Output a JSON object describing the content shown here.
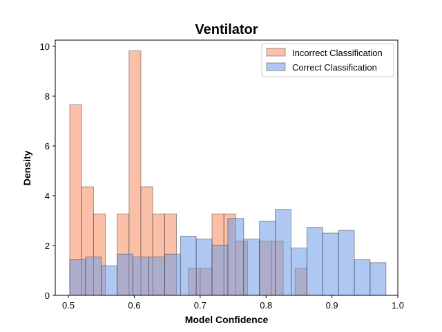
{
  "chart_data": {
    "type": "histogram",
    "title": "Ventilator",
    "xlabel": "Model Confidence",
    "ylabel": "Density",
    "xlim": [
      0.48,
      1.0
    ],
    "ylim": [
      0,
      10.25
    ],
    "xticks": [
      "0.5",
      "0.6",
      "0.7",
      "0.8",
      "0.9",
      "1.0"
    ],
    "yticks": [
      "0",
      "2",
      "4",
      "6",
      "8",
      "10"
    ],
    "grid": false,
    "legend_position": "top-right",
    "series": [
      {
        "name": "Incorrect Classification",
        "color": "#fa8c62",
        "bins": [
          {
            "x0": 0.502,
            "x1": 0.52,
            "value": 7.65
          },
          {
            "x0": 0.52,
            "x1": 0.538,
            "value": 4.36
          },
          {
            "x0": 0.538,
            "x1": 0.556,
            "value": 3.27
          },
          {
            "x0": 0.574,
            "x1": 0.592,
            "value": 3.27
          },
          {
            "x0": 0.592,
            "x1": 0.61,
            "value": 9.82
          },
          {
            "x0": 0.61,
            "x1": 0.628,
            "value": 4.36
          },
          {
            "x0": 0.628,
            "x1": 0.646,
            "value": 3.27
          },
          {
            "x0": 0.646,
            "x1": 0.664,
            "value": 3.27
          },
          {
            "x0": 0.682,
            "x1": 0.7,
            "value": 1.09
          },
          {
            "x0": 0.7,
            "x1": 0.718,
            "value": 1.09
          },
          {
            "x0": 0.718,
            "x1": 0.736,
            "value": 3.27
          },
          {
            "x0": 0.736,
            "x1": 0.754,
            "value": 3.27
          },
          {
            "x0": 0.754,
            "x1": 0.772,
            "value": 2.18
          },
          {
            "x0": 0.79,
            "x1": 0.808,
            "value": 2.18
          },
          {
            "x0": 0.808,
            "x1": 0.826,
            "value": 2.18
          },
          {
            "x0": 0.844,
            "x1": 0.862,
            "value": 1.09
          }
        ]
      },
      {
        "name": "Correct Classification",
        "color": "#6d9be8",
        "bins": [
          {
            "x0": 0.502,
            "x1": 0.526,
            "value": 1.43
          },
          {
            "x0": 0.526,
            "x1": 0.55,
            "value": 1.54
          },
          {
            "x0": 0.55,
            "x1": 0.574,
            "value": 1.19
          },
          {
            "x0": 0.574,
            "x1": 0.598,
            "value": 1.66
          },
          {
            "x0": 0.598,
            "x1": 0.622,
            "value": 1.54
          },
          {
            "x0": 0.622,
            "x1": 0.646,
            "value": 1.54
          },
          {
            "x0": 0.646,
            "x1": 0.67,
            "value": 1.66
          },
          {
            "x0": 0.67,
            "x1": 0.694,
            "value": 2.38
          },
          {
            "x0": 0.694,
            "x1": 0.718,
            "value": 2.26
          },
          {
            "x0": 0.718,
            "x1": 0.742,
            "value": 2.02
          },
          {
            "x0": 0.742,
            "x1": 0.766,
            "value": 3.09
          },
          {
            "x0": 0.766,
            "x1": 0.79,
            "value": 2.26
          },
          {
            "x0": 0.79,
            "x1": 0.814,
            "value": 2.97
          },
          {
            "x0": 0.814,
            "x1": 0.838,
            "value": 3.45
          },
          {
            "x0": 0.838,
            "x1": 0.862,
            "value": 1.9
          },
          {
            "x0": 0.862,
            "x1": 0.886,
            "value": 2.73
          },
          {
            "x0": 0.886,
            "x1": 0.91,
            "value": 2.5
          },
          {
            "x0": 0.91,
            "x1": 0.934,
            "value": 2.61
          },
          {
            "x0": 0.934,
            "x1": 0.958,
            "value": 1.43
          },
          {
            "x0": 0.958,
            "x1": 0.982,
            "value": 1.31
          }
        ]
      }
    ]
  }
}
